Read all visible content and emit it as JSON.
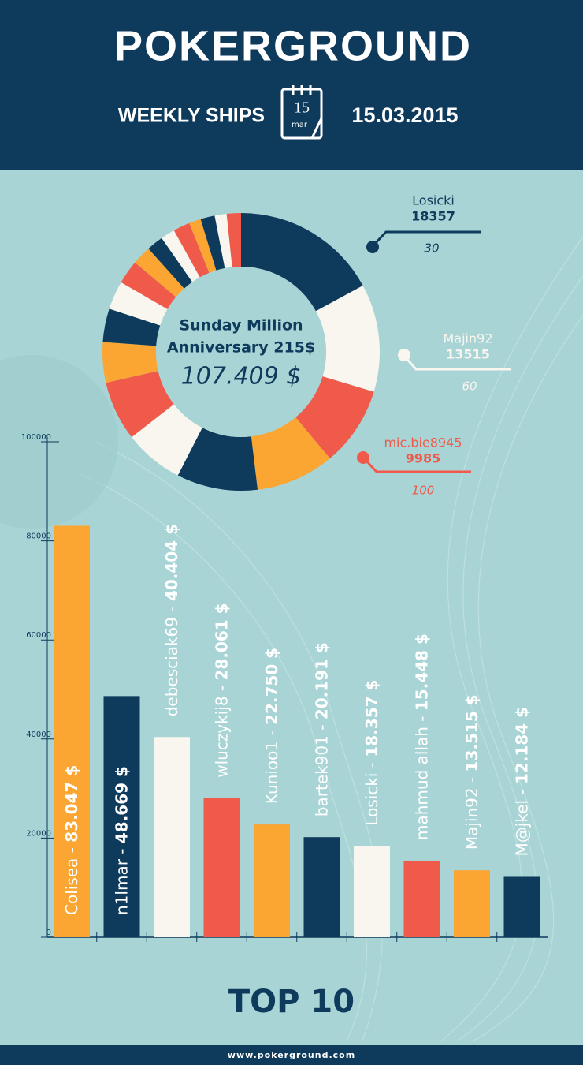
{
  "header": {
    "logo": "PokerGround",
    "subtitle": "WEEKLY SHIPS",
    "calendar_day": "15",
    "calendar_month": "mar",
    "date": "15.03.2015"
  },
  "chart_data": [
    {
      "type": "donut",
      "center_title": [
        "Sunday Million",
        "Anniversary 215$"
      ],
      "center_value": "107.409 $",
      "values": [
        18357,
        13515,
        9985,
        9850,
        10150,
        7460,
        7460,
        5070,
        4180,
        3580,
        2980,
        2390,
        2090,
        1790,
        2090,
        1490,
        1790,
        1490,
        1790
      ],
      "colors": [
        "#0e3a5c",
        "#f8f6ee",
        "#ef5a4a",
        "#fba533",
        "#0e3a5c",
        "#f8f6ee",
        "#ef5a4a",
        "#fba533",
        "#0e3a5c",
        "#f8f6ee",
        "#ef5a4a",
        "#fba533",
        "#0e3a5c",
        "#f8f6ee",
        "#ef5a4a",
        "#fba533",
        "#0e3a5c",
        "#f8f6ee",
        "#ef5a4a"
      ],
      "annotations": [
        {
          "name": "Losicki",
          "value": "18357",
          "note": "30",
          "color": "#0e3a5c"
        },
        {
          "name": "Majin92",
          "value": "13515",
          "note": "60",
          "color": "#f8f6ee"
        },
        {
          "name": "mic.bie8945",
          "value": "9985",
          "note": "100",
          "color": "#ef5a4a"
        }
      ]
    },
    {
      "type": "bar",
      "title": "TOP 10",
      "categories": [
        "Colisea",
        "n1lmar",
        "debesciak69",
        "wluczykij8",
        "Kunioo1",
        "bartek901",
        "Losicki",
        "mahmud allah",
        "Majin92",
        "M@jkel"
      ],
      "values": [
        83047,
        48669,
        40404,
        28061,
        22750,
        20191,
        18357,
        15448,
        13515,
        12184
      ],
      "value_labels": [
        "83.047 $",
        "48.669 $",
        "40.404 $",
        "28.061 $",
        "22.750 $",
        "20.191 $",
        "18.357 $",
        "15.448 $",
        "13.515 $",
        "12.184 $"
      ],
      "label_separator": " - ",
      "colors": [
        "#fba533",
        "#0e3a5c",
        "#f8f6ee",
        "#ef5a4a",
        "#fba533",
        "#0e3a5c",
        "#f8f6ee",
        "#ef5a4a",
        "#fba533",
        "#0e3a5c"
      ],
      "ylim": [
        0,
        100000
      ],
      "yticks": [
        0,
        20000,
        40000,
        60000,
        80000,
        100000
      ]
    }
  ],
  "footer": {
    "url": "www.pokerground.com"
  }
}
